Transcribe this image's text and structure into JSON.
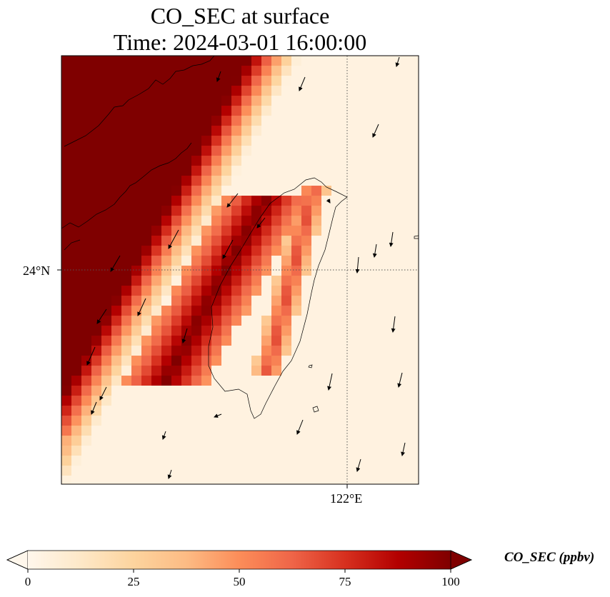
{
  "title": {
    "line1": "CO_SEC at surface",
    "line2": "Time: 2024-03-01 16:00:00"
  },
  "map": {
    "variable": "CO_SEC",
    "level": "surface",
    "gridlines": {
      "style": "dotted",
      "color": "#555555"
    },
    "lat_ticks": [
      {
        "label": "24°N"
      }
    ],
    "lon_ticks": [
      {
        "label": "122°E"
      }
    ],
    "vectors": "wind arrows (black)",
    "coastline_color": "#000000"
  },
  "colorbar": {
    "label": "CO_SEC (ppbv)",
    "min": 0,
    "max": 100,
    "extend": "both",
    "cmap": "OrRd",
    "colors": [
      "#fff7ec",
      "#fee8c8",
      "#fdd49e",
      "#fdbb84",
      "#fc8d59",
      "#ef6548",
      "#d7301f",
      "#b30000",
      "#7f0000"
    ],
    "ticks": [
      "0",
      "25",
      "50",
      "75",
      "100"
    ]
  }
}
